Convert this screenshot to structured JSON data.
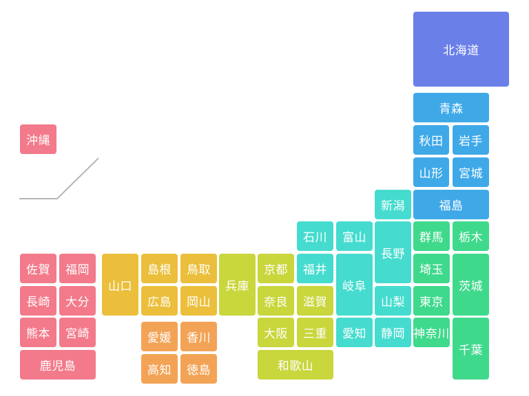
{
  "regions": {
    "hokkaido": {
      "color": "#6a7fe8"
    },
    "tohoku": {
      "color": "#3fa9e8"
    },
    "kanto": {
      "color": "#3fd98c"
    },
    "chubu": {
      "color": "#45dccf"
    },
    "kinki": {
      "color": "#c9d63c"
    },
    "chugoku": {
      "color": "#ebbf3b"
    },
    "shikoku": {
      "color": "#f3a356"
    },
    "kyushu": {
      "color": "#f27a8a"
    },
    "okinawa": {
      "color": "#f27a8a"
    }
  },
  "prefectures": [
    {
      "id": "hokkaido",
      "label": "北海道",
      "region": "hokkaido"
    },
    {
      "id": "aomori",
      "label": "青森",
      "region": "tohoku"
    },
    {
      "id": "akita",
      "label": "秋田",
      "region": "tohoku"
    },
    {
      "id": "iwate",
      "label": "岩手",
      "region": "tohoku"
    },
    {
      "id": "yamagata",
      "label": "山形",
      "region": "tohoku"
    },
    {
      "id": "miyagi",
      "label": "宮城",
      "region": "tohoku"
    },
    {
      "id": "fukushima",
      "label": "福島",
      "region": "tohoku"
    },
    {
      "id": "niigata",
      "label": "新潟",
      "region": "chubu"
    },
    {
      "id": "ishikawa",
      "label": "石川",
      "region": "chubu"
    },
    {
      "id": "toyama",
      "label": "富山",
      "region": "chubu"
    },
    {
      "id": "nagano",
      "label": "長野",
      "region": "chubu"
    },
    {
      "id": "fukui",
      "label": "福井",
      "region": "chubu"
    },
    {
      "id": "gifu",
      "label": "岐阜",
      "region": "chubu"
    },
    {
      "id": "yamanashi",
      "label": "山梨",
      "region": "chubu"
    },
    {
      "id": "aichi",
      "label": "愛知",
      "region": "chubu"
    },
    {
      "id": "shizuoka",
      "label": "静岡",
      "region": "chubu"
    },
    {
      "id": "gunma",
      "label": "群馬",
      "region": "kanto"
    },
    {
      "id": "tochigi",
      "label": "栃木",
      "region": "kanto"
    },
    {
      "id": "saitama",
      "label": "埼玉",
      "region": "kanto"
    },
    {
      "id": "ibaraki",
      "label": "茨城",
      "region": "kanto"
    },
    {
      "id": "tokyo",
      "label": "東京",
      "region": "kanto"
    },
    {
      "id": "kanagawa",
      "label": "神奈川",
      "region": "kanto"
    },
    {
      "id": "chiba",
      "label": "千葉",
      "region": "kanto"
    },
    {
      "id": "kyoto",
      "label": "京都",
      "region": "kinki"
    },
    {
      "id": "nara",
      "label": "奈良",
      "region": "kinki"
    },
    {
      "id": "shiga",
      "label": "滋賀",
      "region": "kinki"
    },
    {
      "id": "osaka",
      "label": "大阪",
      "region": "kinki"
    },
    {
      "id": "mie",
      "label": "三重",
      "region": "kinki"
    },
    {
      "id": "wakayama",
      "label": "和歌山",
      "region": "kinki"
    },
    {
      "id": "hyogo",
      "label": "兵庫",
      "region": "kinki"
    },
    {
      "id": "yamaguchi",
      "label": "山口",
      "region": "chugoku"
    },
    {
      "id": "shimane",
      "label": "島根",
      "region": "chugoku"
    },
    {
      "id": "tottori",
      "label": "鳥取",
      "region": "chugoku"
    },
    {
      "id": "hiroshima",
      "label": "広島",
      "region": "chugoku"
    },
    {
      "id": "okayama",
      "label": "岡山",
      "region": "chugoku"
    },
    {
      "id": "ehime",
      "label": "愛媛",
      "region": "shikoku"
    },
    {
      "id": "kagawa",
      "label": "香川",
      "region": "shikoku"
    },
    {
      "id": "kochi",
      "label": "高知",
      "region": "shikoku"
    },
    {
      "id": "tokushima",
      "label": "徳島",
      "region": "shikoku"
    },
    {
      "id": "saga",
      "label": "佐賀",
      "region": "kyushu"
    },
    {
      "id": "fukuoka",
      "label": "福岡",
      "region": "kyushu"
    },
    {
      "id": "nagasaki",
      "label": "長崎",
      "region": "kyushu"
    },
    {
      "id": "oita",
      "label": "大分",
      "region": "kyushu"
    },
    {
      "id": "kumamoto",
      "label": "熊本",
      "region": "kyushu"
    },
    {
      "id": "miyazaki",
      "label": "宮崎",
      "region": "kyushu"
    },
    {
      "id": "kagoshima",
      "label": "鹿児島",
      "region": "kyushu"
    },
    {
      "id": "okinawa",
      "label": "沖縄",
      "region": "okinawa"
    }
  ]
}
